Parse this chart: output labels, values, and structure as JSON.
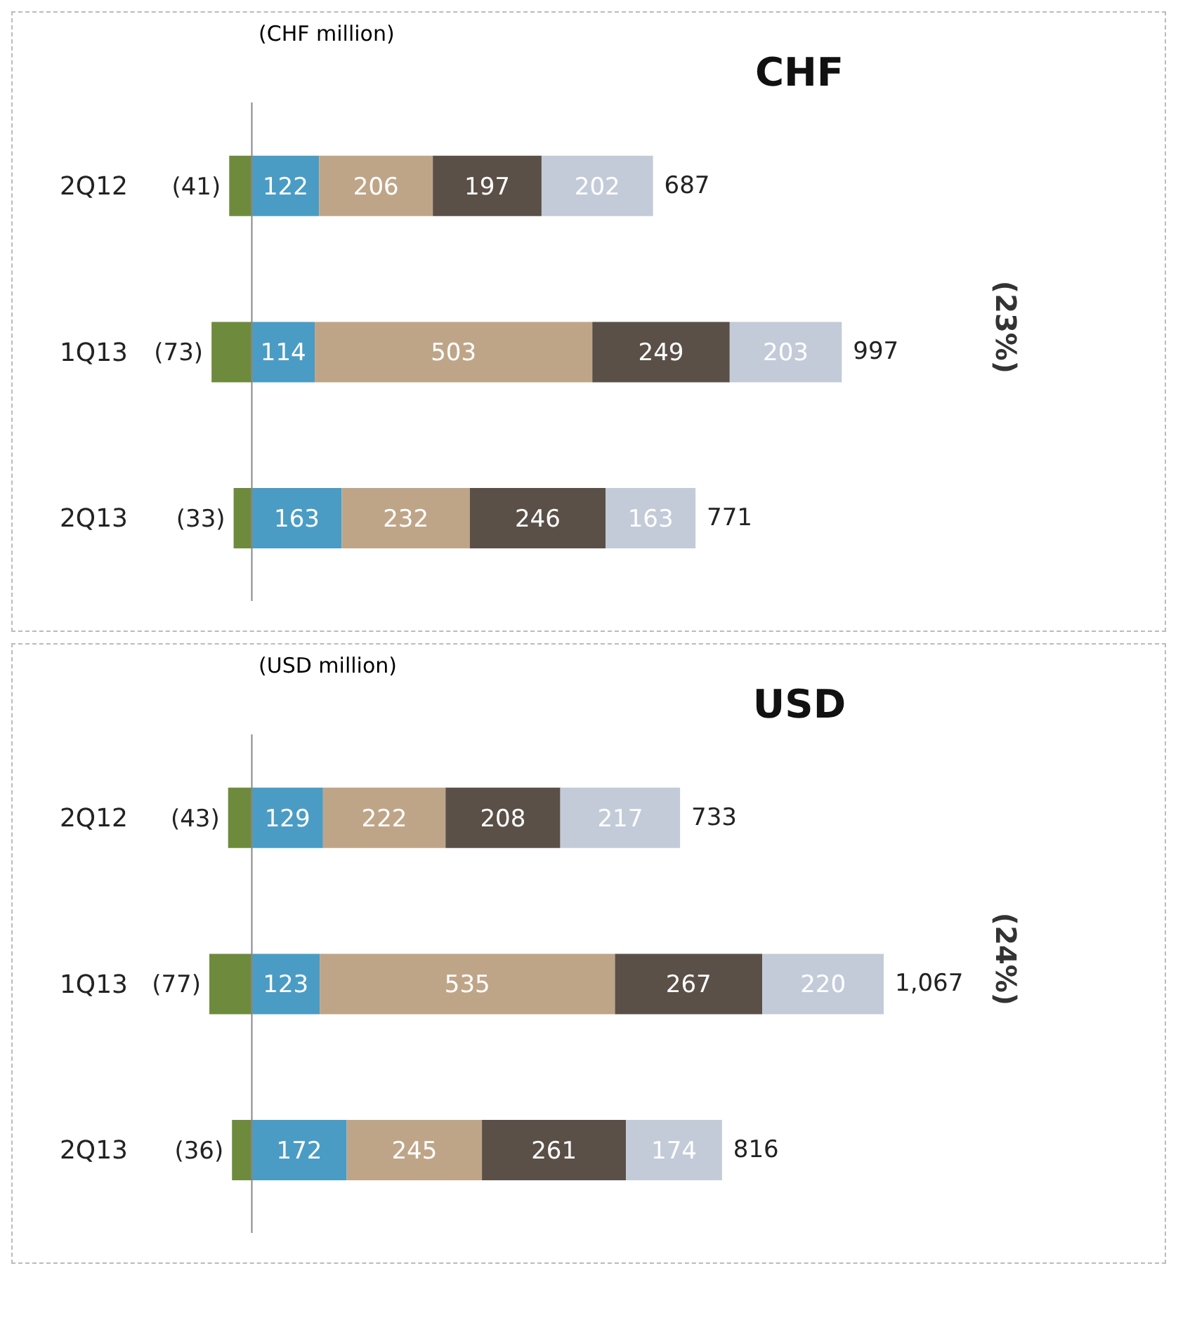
{
  "chart_data": [
    {
      "type": "bar",
      "orientation": "horizontal",
      "stacked": true,
      "title": "CHF",
      "subtitle": "(CHF million)",
      "annotations": [
        "(23%)"
      ],
      "categories": [
        "2Q12",
        "1Q13",
        "2Q13"
      ],
      "data_labels": true,
      "totals": [
        "687",
        "997",
        "771"
      ],
      "series": [
        {
          "color": "#6e8b3d",
          "values": [
            -41,
            -73,
            -33
          ],
          "value_labels": [
            "(41)",
            "(73)",
            "(33)"
          ]
        },
        {
          "color": "#4a9cc4",
          "values": [
            122,
            114,
            163
          ]
        },
        {
          "color": "#bfa588",
          "values": [
            206,
            503,
            232
          ]
        },
        {
          "color": "#5a5048",
          "values": [
            197,
            249,
            246
          ]
        },
        {
          "color": "#c3cbd8",
          "values": [
            202,
            203,
            163
          ]
        }
      ]
    },
    {
      "type": "bar",
      "orientation": "horizontal",
      "stacked": true,
      "title": "USD",
      "subtitle": "(USD million)",
      "annotations": [
        "(24%)"
      ],
      "categories": [
        "2Q12",
        "1Q13",
        "2Q13"
      ],
      "data_labels": true,
      "totals": [
        "733",
        "1,067",
        "816"
      ],
      "series": [
        {
          "color": "#6e8b3d",
          "values": [
            -43,
            -77,
            -36
          ],
          "value_labels": [
            "(43)",
            "(77)",
            "(36)"
          ]
        },
        {
          "color": "#4a9cc4",
          "values": [
            129,
            123,
            172
          ]
        },
        {
          "color": "#bfa588",
          "values": [
            222,
            535,
            245
          ]
        },
        {
          "color": "#5a5048",
          "values": [
            208,
            267,
            261
          ]
        },
        {
          "color": "#c3cbd8",
          "values": [
            217,
            220,
            174
          ]
        }
      ]
    }
  ]
}
